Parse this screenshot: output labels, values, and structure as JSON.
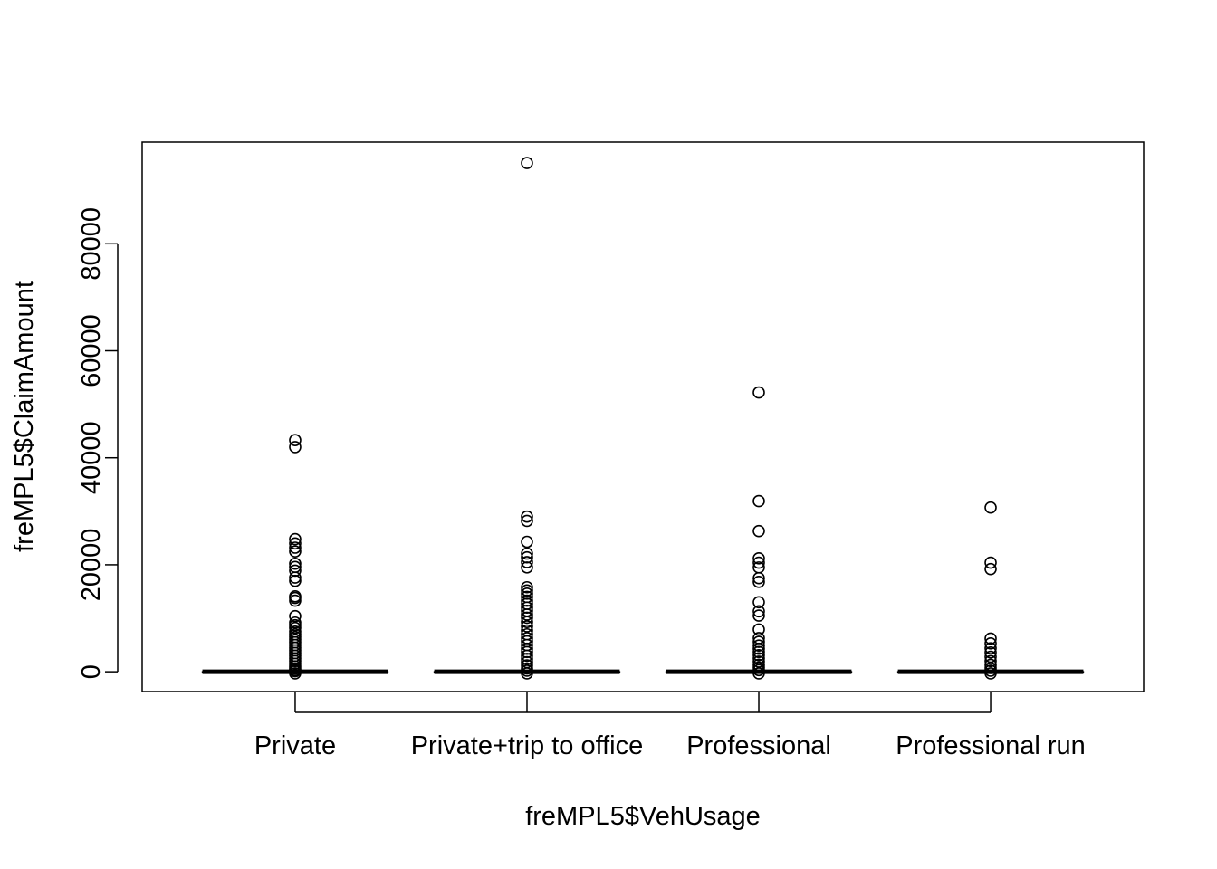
{
  "chart_data": {
    "type": "boxplot",
    "title": "",
    "xlabel": "freMPL5$VehUsage",
    "ylabel": "freMPL5$ClaimAmount",
    "ylim": [
      -3700,
      99000
    ],
    "yticks": [
      0,
      20000,
      40000,
      60000,
      80000
    ],
    "ytick_labels": [
      "0",
      "20000",
      "40000",
      "60000",
      "80000"
    ],
    "grid": false,
    "legend": "none",
    "categories": [
      "Private",
      "Private+trip to office",
      "Professional",
      "Professional run"
    ],
    "boxes": [
      {
        "category": "Private",
        "q1": 0,
        "median": 0,
        "q3": 0,
        "whisker_low": 0,
        "whisker_high": 0,
        "outliers": [
          43300,
          42000,
          24800,
          24000,
          23200,
          22500,
          20200,
          19600,
          18900,
          17600,
          17000,
          14100,
          13800,
          13300,
          10400,
          9200,
          8700,
          8200,
          7500,
          7000,
          6500,
          6000,
          5500,
          5000,
          4500,
          4000,
          3500,
          3000,
          2500,
          2000,
          1500,
          1000,
          600,
          300,
          100,
          -300
        ]
      },
      {
        "category": "Private+trip to office",
        "q1": 0,
        "median": 0,
        "q3": 0,
        "whisker_low": 0,
        "whisker_high": 0,
        "outliers": [
          95100,
          29000,
          28200,
          24300,
          22100,
          21400,
          20500,
          19500,
          15800,
          15200,
          14600,
          14000,
          13300,
          12700,
          12000,
          11400,
          10700,
          10100,
          9300,
          8500,
          7700,
          7000,
          6300,
          5700,
          5000,
          4300,
          3700,
          3000,
          2400,
          1800,
          1200,
          600,
          200,
          -300
        ]
      },
      {
        "category": "Professional",
        "q1": 0,
        "median": 0,
        "q3": 0,
        "whisker_low": 0,
        "whisker_high": 0,
        "outliers": [
          52200,
          31900,
          26300,
          21200,
          20400,
          19500,
          17500,
          16800,
          13000,
          11300,
          10500,
          7900,
          6300,
          5600,
          4900,
          4300,
          3700,
          3100,
          2500,
          1900,
          1300,
          800,
          300,
          -300
        ]
      },
      {
        "category": "Professional run",
        "q1": 0,
        "median": 0,
        "q3": 0,
        "whisker_low": 0,
        "whisker_high": 0,
        "outliers": [
          30700,
          20400,
          19200,
          6200,
          5300,
          4400,
          3600,
          2800,
          2000,
          1300,
          700,
          200,
          -300
        ]
      }
    ]
  }
}
